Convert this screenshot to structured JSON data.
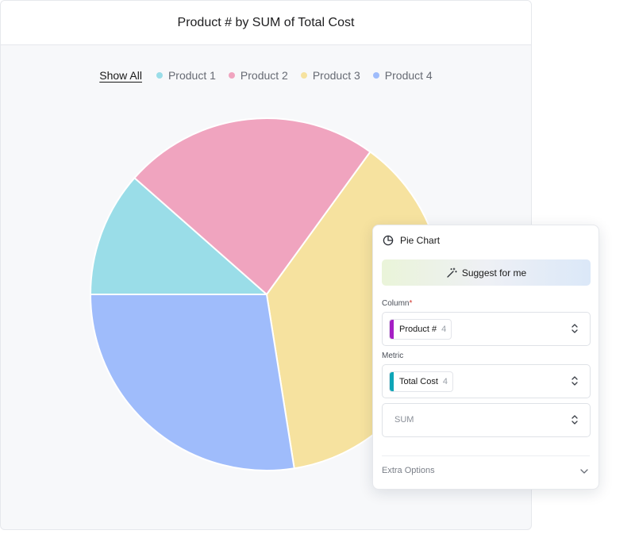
{
  "chart_card": {
    "title": "Product # by SUM of Total Cost",
    "legend": {
      "show_all": "Show All",
      "items": [
        {
          "label": "Product 1",
          "color": "#9adde8"
        },
        {
          "label": "Product 2",
          "color": "#f0a4bf"
        },
        {
          "label": "Product 3",
          "color": "#f6e29f"
        },
        {
          "label": "Product 4",
          "color": "#9fbcfb"
        }
      ]
    }
  },
  "chart_data": {
    "type": "pie",
    "title": "Product # by SUM of Total Cost",
    "categories": [
      "Product 1",
      "Product 2",
      "Product 3",
      "Product 4"
    ],
    "values": [
      11.5,
      23.5,
      37.5,
      27.5
    ],
    "colors": [
      "#9adde8",
      "#f0a4bf",
      "#f6e29f",
      "#9fbcfb"
    ],
    "legend_position": "top"
  },
  "panel": {
    "header_title": "Pie Chart",
    "header_icon": "pie-chart-icon",
    "suggest_label": "Suggest for me",
    "suggest_icon": "magic-wand-icon",
    "column_label": "Column",
    "column_required_mark": "*",
    "column_chip": {
      "label": "Product #",
      "count": "4",
      "color": "#a51fc4"
    },
    "metric_label": "Metric",
    "metric_chip": {
      "label": "Total Cost",
      "count": "4",
      "color": "#0ea5b7"
    },
    "aggregation": "SUM",
    "extra_options": "Extra Options"
  }
}
